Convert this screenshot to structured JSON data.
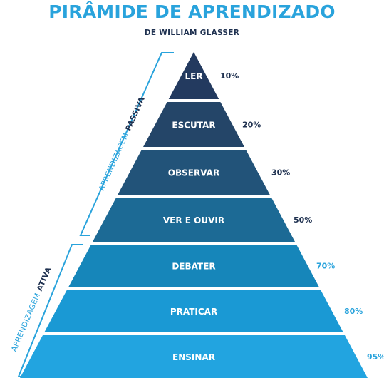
{
  "title": "PIRÂMIDE DE APRENDIZADO",
  "subtitle": "DE WILLIAM GLASSER",
  "levels": [
    {
      "label": "LER",
      "percent": "10%",
      "color": "#233a5f"
    },
    {
      "label": "ESCUTAR",
      "percent": "20%",
      "color": "#244568"
    },
    {
      "label": "OBSERVAR",
      "percent": "30%",
      "color": "#225379"
    },
    {
      "label": "VER E OUVIR",
      "percent": "50%",
      "color": "#1c6a95"
    },
    {
      "label": "DEBATER",
      "percent": "70%",
      "color": "#1686ba"
    },
    {
      "label": "PRATICAR",
      "percent": "80%",
      "color": "#1a99d4"
    },
    {
      "label": "ENSINAR",
      "percent": "95%",
      "color": "#22a4e0"
    }
  ],
  "groups": {
    "passive": {
      "prefix": "APRENDIZAGEM",
      "word": "PASSIVA"
    },
    "active": {
      "prefix": "APRENDIZAGEM",
      "word": "ATIVA"
    }
  },
  "colors": {
    "accent": "#29a3dc",
    "dark": "#1f3150"
  }
}
